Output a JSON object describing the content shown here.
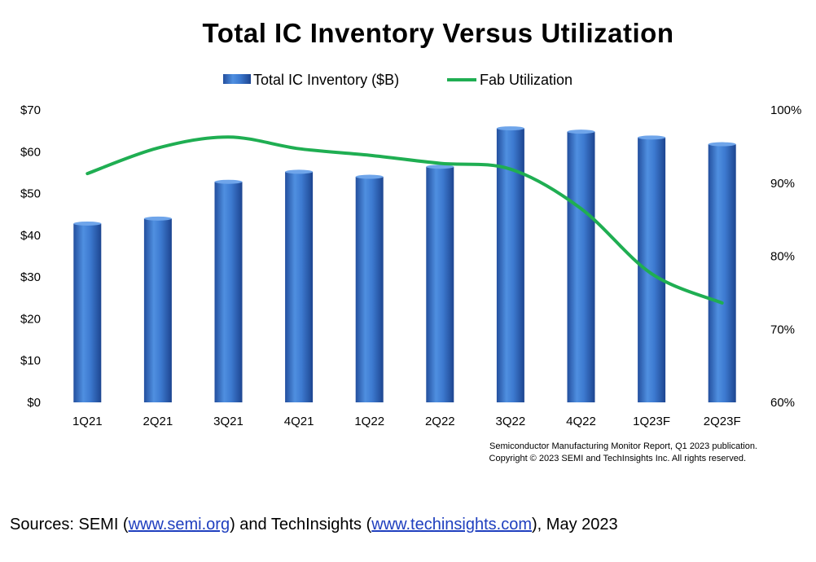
{
  "chart_data": {
    "type": "bar+line",
    "title": "Total IC Inventory Versus Utilization",
    "categories": [
      "1Q21",
      "2Q21",
      "3Q21",
      "4Q21",
      "1Q22",
      "2Q22",
      "3Q22",
      "4Q22",
      "1Q23F",
      "2Q23F"
    ],
    "series": [
      {
        "name": "Total IC Inventory ($B)",
        "type": "bar",
        "axis": "left",
        "color": "#3a6fc4",
        "values": [
          42.8,
          44.0,
          52.8,
          55.2,
          54.0,
          56.4,
          65.6,
          64.8,
          63.4,
          61.8
        ]
      },
      {
        "name": "Fab Utilization",
        "type": "line",
        "axis": "right",
        "color": "#1fae52",
        "values": [
          91.3,
          94.8,
          96.3,
          94.7,
          93.8,
          92.7,
          91.9,
          86.5,
          77.6,
          73.6
        ]
      }
    ],
    "y_left": {
      "range": [
        0,
        70
      ],
      "ticks": [
        0,
        10,
        20,
        30,
        40,
        50,
        60,
        70
      ],
      "tick_labels": [
        "$0",
        "$10",
        "$20",
        "$30",
        "$40",
        "$50",
        "$60",
        "$70"
      ]
    },
    "y_right": {
      "range": [
        60,
        100
      ],
      "ticks": [
        60,
        70,
        80,
        90,
        100
      ],
      "tick_labels": [
        "60%",
        "70%",
        "80%",
        "90%",
        "100%"
      ]
    },
    "legend_position": "top-center",
    "grid": false,
    "notes": [
      "Semiconductor Manufacturing Monitor Report, Q1 2023 publication.",
      "Copyright © 2023 SEMI and TechInsights Inc. All rights reserved."
    ]
  },
  "sources": {
    "prefix": "Sources: SEMI (",
    "link1": "www.semi.org",
    "middle": ") and TechInsights (",
    "link2": "www.techinsights.com",
    "suffix": "), May 2023"
  }
}
